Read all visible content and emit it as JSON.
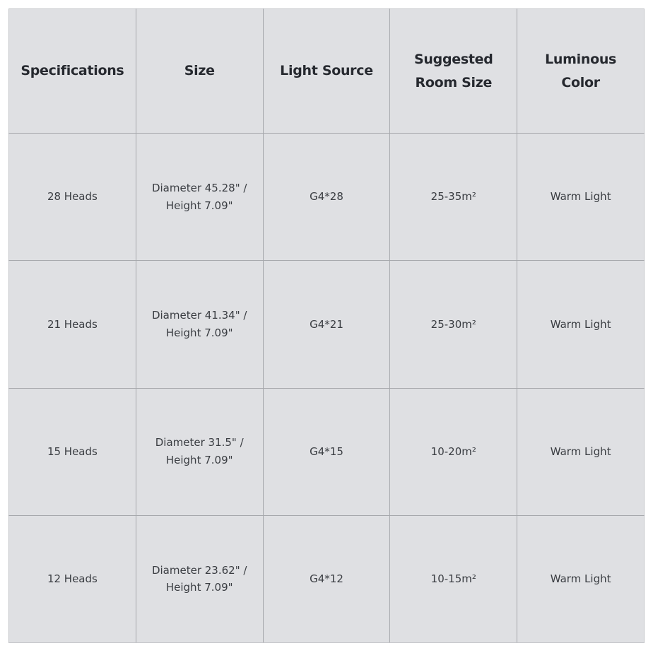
{
  "colors": {
    "page_bg": "#ffffff",
    "cell_bg": "#dfe0e3",
    "border": "#a6a8ac",
    "outer_border": "#c3c4c8",
    "header_text": "#26292f",
    "body_text": "#3a3d42"
  },
  "table": {
    "headers": {
      "specifications": "Specifications",
      "size": "Size",
      "light_source": "Light Source",
      "room_size": "Suggested Room Size",
      "luminous_color": "Luminous Color"
    },
    "rows": [
      {
        "specifications": "28 Heads",
        "size_line1": "Diameter 45.28\" /",
        "size_line2": "Height 7.09\"",
        "light_source": "G4*28",
        "room_size": "25-35m²",
        "luminous_color": "Warm Light"
      },
      {
        "specifications": "21 Heads",
        "size_line1": "Diameter 41.34\" /",
        "size_line2": "Height 7.09\"",
        "light_source": "G4*21",
        "room_size": "25-30m²",
        "luminous_color": "Warm Light"
      },
      {
        "specifications": "15 Heads",
        "size_line1": "Diameter 31.5\" /",
        "size_line2": "Height 7.09\"",
        "light_source": "G4*15",
        "room_size": "10-20m²",
        "luminous_color": "Warm Light"
      },
      {
        "specifications": "12 Heads",
        "size_line1": "Diameter 23.62\" /",
        "size_line2": "Height 7.09\"",
        "light_source": "G4*12",
        "room_size": "10-15m²",
        "luminous_color": "Warm Light"
      }
    ]
  }
}
